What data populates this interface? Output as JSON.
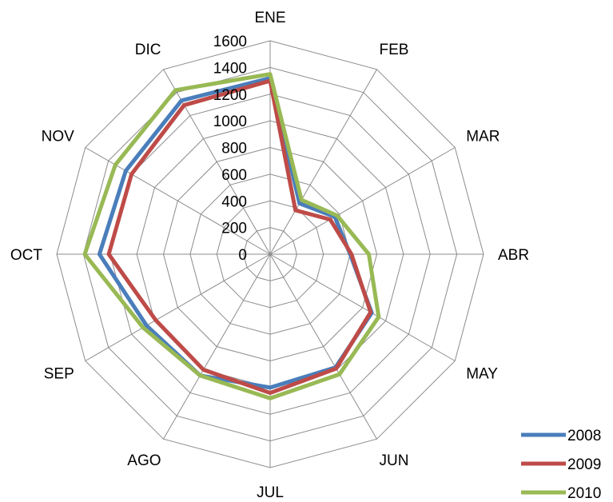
{
  "chart_data": {
    "type": "radar",
    "categories": [
      "ENE",
      "FEB",
      "MAR",
      "ABR",
      "MAY",
      "JUN",
      "JUL",
      "AGO",
      "SEP",
      "OCT",
      "NOV",
      "DIC"
    ],
    "series": [
      {
        "name": "2008",
        "color": "#4a7ebb",
        "values": [
          1320,
          440,
          560,
          600,
          880,
          980,
          1000,
          1050,
          1070,
          1280,
          1250,
          1330
        ]
      },
      {
        "name": "2009",
        "color": "#be4b48",
        "values": [
          1300,
          380,
          520,
          610,
          870,
          990,
          1040,
          1000,
          990,
          1210,
          1200,
          1290
        ]
      },
      {
        "name": "2010",
        "color": "#98b954",
        "values": [
          1350,
          470,
          580,
          740,
          940,
          1040,
          1080,
          1050,
          1100,
          1390,
          1340,
          1420
        ]
      }
    ],
    "rlim": [
      0,
      1600
    ],
    "ticks": [
      "0",
      "200",
      "400",
      "600",
      "800",
      "1000",
      "1200",
      "1400",
      "1600"
    ],
    "grid": true,
    "legend": "bottom-right"
  }
}
